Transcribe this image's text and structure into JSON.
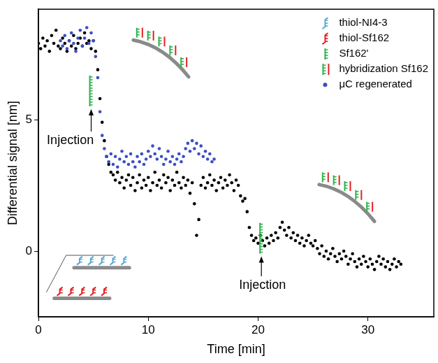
{
  "chart_data": {
    "type": "scatter",
    "x_label": "Time [min]",
    "y_label": "Differential signal [nm]",
    "xlim": [
      0,
      36
    ],
    "ylim": [
      -2.5,
      9.2
    ],
    "xticks": [
      0,
      10,
      20,
      30
    ],
    "yticks": [
      0,
      5
    ],
    "grid": false,
    "legend": "upper right",
    "series": [
      {
        "name": "thiol-NI4-3",
        "color": "#5aaad2",
        "marker": "thiol",
        "x": [],
        "values": []
      },
      {
        "name": "thiol-Sf162",
        "color": "#e02020",
        "marker": "thiol",
        "x": [],
        "values": []
      },
      {
        "name": "Sf162'",
        "color": "#2db34a",
        "marker": "strand",
        "x": [],
        "values": []
      },
      {
        "name": "hybridization Sf162",
        "color": "#2db34a",
        "marker": "duplex",
        "x": [],
        "values": []
      },
      {
        "color": "#000000",
        "marker": "dot",
        "x": [
          0.0,
          0.2,
          0.4,
          0.6,
          0.8,
          1.0,
          1.2,
          1.4,
          1.6,
          1.8,
          2.0,
          2.2,
          2.4,
          2.6,
          2.8,
          3.0,
          3.2,
          3.4,
          3.6,
          3.8,
          4.0,
          4.2,
          4.4,
          4.6,
          4.8,
          5.0,
          5.2,
          5.4,
          5.6,
          5.8,
          6.0,
          6.2,
          6.4,
          6.6,
          6.8,
          7.0,
          7.2,
          7.4,
          7.6,
          7.8,
          8.0,
          8.2,
          8.4,
          8.6,
          8.8,
          9.0,
          9.2,
          9.4,
          9.6,
          9.8,
          10.0,
          10.2,
          10.4,
          10.6,
          10.8,
          11.0,
          11.2,
          11.4,
          11.6,
          11.8,
          12.0,
          12.2,
          12.4,
          12.6,
          12.8,
          13.0,
          13.2,
          13.4,
          13.6,
          13.8,
          14.0,
          14.2,
          14.4,
          14.6,
          14.8,
          15.0,
          15.2,
          15.4,
          15.6,
          15.8,
          16.0,
          16.2,
          16.4,
          16.6,
          16.8,
          17.0,
          17.2,
          17.4,
          17.6,
          17.8,
          18.0,
          18.2,
          18.4,
          18.6,
          18.8,
          19.0,
          19.2,
          19.4,
          19.6,
          19.8,
          20.0,
          20.2,
          20.4,
          20.6,
          20.8,
          21.0,
          21.2,
          21.4,
          21.6,
          21.8,
          22.0,
          22.2,
          22.4,
          22.6,
          22.8,
          23.0,
          23.2,
          23.4,
          23.6,
          23.8,
          24.0,
          24.2,
          24.4,
          24.6,
          24.8,
          25.0,
          25.2,
          25.4,
          25.6,
          25.8,
          26.0,
          26.2,
          26.4,
          26.6,
          26.8,
          27.0,
          27.2,
          27.4,
          27.6,
          27.8,
          28.0,
          28.2,
          28.4,
          28.6,
          28.8,
          29.0,
          29.2,
          29.4,
          29.6,
          29.8,
          30.0,
          30.2,
          30.4,
          30.6,
          30.8,
          31.0,
          31.2,
          31.4,
          31.6,
          31.8,
          32.0,
          32.2,
          32.4,
          32.6,
          32.8,
          33.0
        ],
        "values": [
          7.9,
          7.7,
          8.1,
          7.8,
          8.0,
          7.6,
          8.2,
          7.9,
          8.4,
          7.8,
          7.7,
          8.1,
          7.9,
          7.6,
          8.0,
          7.8,
          8.2,
          7.7,
          7.9,
          8.1,
          7.8,
          8.3,
          7.9,
          8.0,
          7.7,
          8.0,
          7.6,
          6.9,
          5.8,
          4.9,
          4.2,
          3.6,
          3.3,
          3.0,
          2.9,
          2.7,
          3.0,
          2.6,
          2.8,
          2.4,
          2.7,
          2.9,
          2.5,
          2.8,
          2.3,
          2.6,
          2.9,
          2.4,
          2.7,
          2.5,
          2.8,
          2.3,
          2.6,
          3.0,
          2.5,
          2.7,
          2.4,
          2.9,
          2.6,
          2.8,
          2.3,
          2.7,
          2.5,
          3.0,
          2.6,
          2.4,
          2.8,
          2.5,
          2.7,
          2.2,
          2.6,
          1.8,
          0.6,
          1.2,
          2.5,
          2.8,
          2.4,
          2.6,
          2.9,
          2.5,
          2.7,
          2.3,
          2.6,
          2.8,
          2.4,
          2.7,
          2.5,
          2.9,
          2.6,
          2.3,
          2.7,
          2.5,
          2.1,
          1.9,
          2.0,
          1.5,
          0.9,
          0.6,
          0.4,
          0.5,
          0.3,
          0.6,
          0.4,
          0.2,
          0.5,
          0.3,
          0.6,
          0.4,
          0.7,
          0.5,
          0.9,
          1.1,
          0.8,
          0.6,
          0.9,
          0.5,
          0.7,
          0.4,
          0.6,
          0.3,
          0.5,
          0.2,
          0.4,
          0.6,
          0.3,
          0.2,
          0.4,
          0.1,
          -0.1,
          0.2,
          -0.2,
          0.0,
          -0.3,
          -0.1,
          0.1,
          -0.2,
          -0.4,
          -0.1,
          -0.3,
          0.0,
          -0.2,
          -0.5,
          -0.3,
          -0.1,
          -0.4,
          -0.6,
          -0.3,
          -0.5,
          -0.2,
          -0.4,
          -0.6,
          -0.3,
          -0.5,
          -0.7,
          -0.4,
          -0.2,
          -0.5,
          -0.3,
          -0.6,
          -0.4,
          -0.7,
          -0.5,
          -0.3,
          -0.6,
          -0.4,
          -0.5
        ]
      },
      {
        "name": "μC regenerated",
        "color": "#3a4fc4",
        "marker": "dot",
        "x": [
          2.0,
          2.2,
          2.4,
          2.6,
          2.8,
          3.0,
          3.2,
          3.4,
          3.6,
          3.8,
          4.0,
          4.2,
          4.4,
          4.6,
          4.8,
          5.0,
          5.2,
          5.4,
          5.6,
          5.8,
          6.0,
          6.2,
          6.4,
          6.6,
          6.8,
          7.0,
          7.2,
          7.4,
          7.6,
          7.8,
          8.0,
          8.2,
          8.4,
          8.6,
          8.8,
          9.0,
          9.2,
          9.4,
          9.6,
          9.8,
          10.0,
          10.2,
          10.4,
          10.6,
          10.8,
          11.0,
          11.2,
          11.4,
          11.6,
          11.8,
          12.0,
          12.2,
          12.4,
          12.6,
          12.8,
          13.0,
          13.2,
          13.4,
          13.6,
          13.8,
          14.0,
          14.2,
          14.4,
          14.6,
          14.8,
          15.0,
          15.2,
          15.4,
          15.6,
          15.8,
          16.0
        ],
        "values": [
          8.0,
          7.8,
          8.2,
          7.7,
          8.0,
          8.3,
          7.9,
          7.6,
          8.1,
          8.4,
          7.8,
          8.1,
          8.5,
          7.9,
          8.3,
          8.0,
          7.4,
          6.6,
          5.3,
          4.4,
          3.9,
          3.6,
          3.4,
          3.7,
          3.3,
          3.6,
          3.2,
          3.5,
          3.8,
          3.4,
          3.6,
          3.3,
          3.7,
          3.4,
          3.2,
          3.6,
          3.4,
          3.7,
          3.3,
          3.5,
          3.8,
          3.6,
          4.0,
          3.7,
          3.5,
          3.9,
          3.6,
          3.3,
          3.5,
          3.8,
          3.4,
          3.6,
          3.3,
          3.5,
          3.7,
          3.4,
          3.6,
          3.9,
          4.1,
          3.8,
          4.2,
          3.9,
          4.1,
          3.7,
          4.0,
          3.6,
          3.8,
          3.5,
          3.7,
          3.4,
          3.5
        ]
      }
    ],
    "annotations": [
      {
        "text": "Injection",
        "x": 2.9,
        "y": 4.2,
        "arrow": [
          4.8,
          5.4
        ]
      },
      {
        "text": "Injection",
        "x": 20.4,
        "y": -1.3,
        "arrow": [
          20.3,
          -0.2
        ]
      }
    ]
  }
}
